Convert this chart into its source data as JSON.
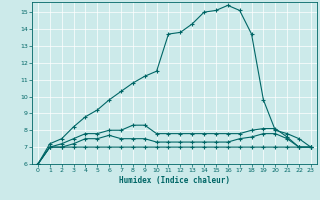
{
  "title": "",
  "xlabel": "Humidex (Indice chaleur)",
  "ylabel": "",
  "background_color": "#cceaea",
  "grid_color": "#ffffff",
  "line_color": "#006666",
  "xlim": [
    -0.5,
    23.5
  ],
  "ylim": [
    6,
    15.6
  ],
  "yticks": [
    6,
    7,
    8,
    9,
    10,
    11,
    12,
    13,
    14,
    15
  ],
  "xticks": [
    0,
    1,
    2,
    3,
    4,
    5,
    6,
    7,
    8,
    9,
    10,
    11,
    12,
    13,
    14,
    15,
    16,
    17,
    18,
    19,
    20,
    21,
    22,
    23
  ],
  "series1_x": [
    0,
    1,
    2,
    3,
    4,
    5,
    6,
    7,
    8,
    9,
    10,
    11,
    12,
    13,
    14,
    15,
    16,
    17,
    18,
    19,
    20,
    21,
    22,
    23
  ],
  "series1_y": [
    6.0,
    7.0,
    7.0,
    7.0,
    7.0,
    7.0,
    7.0,
    7.0,
    7.0,
    7.0,
    7.0,
    7.0,
    7.0,
    7.0,
    7.0,
    7.0,
    7.0,
    7.0,
    7.0,
    7.0,
    7.0,
    7.0,
    7.0,
    7.0
  ],
  "series2_x": [
    0,
    1,
    2,
    3,
    4,
    5,
    6,
    7,
    8,
    9,
    10,
    11,
    12,
    13,
    14,
    15,
    16,
    17,
    18,
    19,
    20,
    21,
    22,
    23
  ],
  "series2_y": [
    6.0,
    7.0,
    7.0,
    7.2,
    7.5,
    7.5,
    7.7,
    7.5,
    7.5,
    7.5,
    7.3,
    7.3,
    7.3,
    7.3,
    7.3,
    7.3,
    7.3,
    7.5,
    7.6,
    7.8,
    7.8,
    7.5,
    7.0,
    7.0
  ],
  "series3_x": [
    0,
    1,
    2,
    3,
    4,
    5,
    6,
    7,
    8,
    9,
    10,
    11,
    12,
    13,
    14,
    15,
    16,
    17,
    18,
    19,
    20,
    21,
    22,
    23
  ],
  "series3_y": [
    6.0,
    7.0,
    7.2,
    7.5,
    7.8,
    7.8,
    8.0,
    8.0,
    8.3,
    8.3,
    7.8,
    7.8,
    7.8,
    7.8,
    7.8,
    7.8,
    7.8,
    7.8,
    8.0,
    8.1,
    8.1,
    7.6,
    7.0,
    7.0
  ],
  "series4_x": [
    0,
    1,
    2,
    3,
    4,
    5,
    6,
    7,
    8,
    9,
    10,
    11,
    12,
    13,
    14,
    15,
    16,
    17,
    18,
    19,
    20,
    21,
    22,
    23
  ],
  "series4_y": [
    6.0,
    7.2,
    7.5,
    8.2,
    8.8,
    9.2,
    9.8,
    10.3,
    10.8,
    11.2,
    11.5,
    13.7,
    13.8,
    14.3,
    15.0,
    15.1,
    15.4,
    15.1,
    13.7,
    9.8,
    8.0,
    7.8,
    7.5,
    7.0
  ]
}
